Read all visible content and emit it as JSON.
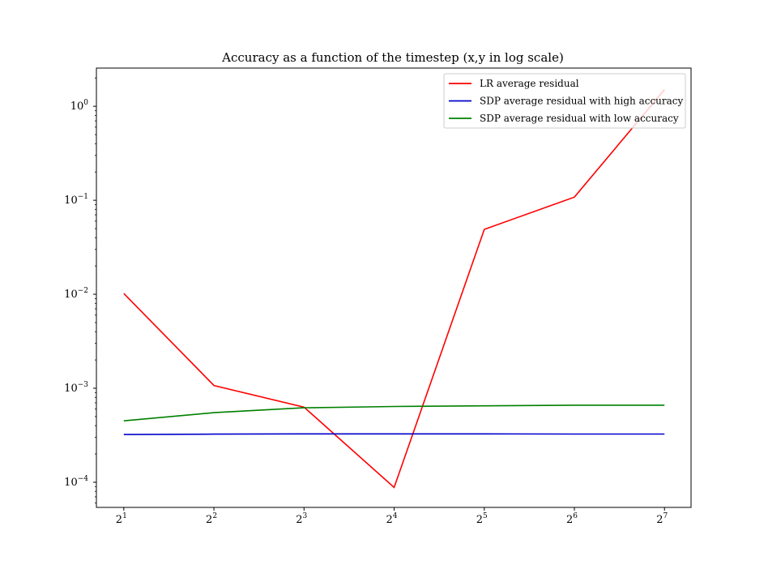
{
  "chart_data": {
    "type": "line",
    "title": "Accuracy as a function of the timestep (x,y in log scale)",
    "xlabel": "",
    "ylabel": "",
    "x": [
      2,
      4,
      8,
      16,
      32,
      64,
      128
    ],
    "xscale": "log2",
    "yscale": "log10",
    "xlim": [
      1.62,
      157
    ],
    "ylim": [
      5.4e-05,
      2.55
    ],
    "x_ticks": [
      {
        "value": 2,
        "base": "2",
        "exp": "1"
      },
      {
        "value": 4,
        "base": "2",
        "exp": "2"
      },
      {
        "value": 8,
        "base": "2",
        "exp": "3"
      },
      {
        "value": 16,
        "base": "2",
        "exp": "4"
      },
      {
        "value": 32,
        "base": "2",
        "exp": "5"
      },
      {
        "value": 64,
        "base": "2",
        "exp": "6"
      },
      {
        "value": 128,
        "base": "2",
        "exp": "7"
      }
    ],
    "y_ticks": [
      {
        "value": 0.0001,
        "base": "10",
        "exp": "−4"
      },
      {
        "value": 0.001,
        "base": "10",
        "exp": "−3"
      },
      {
        "value": 0.01,
        "base": "10",
        "exp": "−2"
      },
      {
        "value": 0.1,
        "base": "10",
        "exp": "−1"
      },
      {
        "value": 1,
        "base": "10",
        "exp": "0"
      }
    ],
    "grid": false,
    "legend_position": "top-right",
    "series": [
      {
        "name": "LR average residual",
        "color": "#ff0000",
        "values": [
          0.0102,
          0.00107,
          0.00063,
          8.8e-05,
          0.049,
          0.108,
          1.5
        ]
      },
      {
        "name": "SDP average residual with high accuracy",
        "color": "#0000cc",
        "values": [
          0.000322,
          0.000325,
          0.000327,
          0.000327,
          0.000327,
          0.000326,
          0.000326
        ]
      },
      {
        "name": "SDP average residual with low accuracy",
        "color": "#008000",
        "values": [
          0.00045,
          0.00055,
          0.00062,
          0.00064,
          0.00065,
          0.00066,
          0.00066
        ]
      }
    ]
  }
}
